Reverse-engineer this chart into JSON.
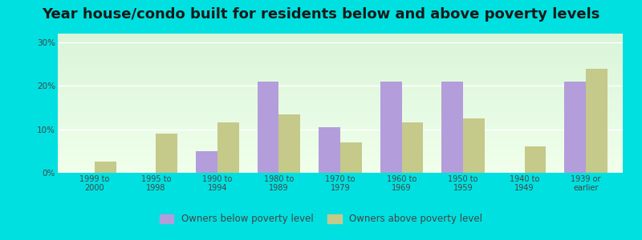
{
  "title": "Year house/condo built for residents below and above poverty levels",
  "categories": [
    "1999 to\n2000",
    "1995 to\n1998",
    "1990 to\n1994",
    "1980 to\n1989",
    "1970 to\n1979",
    "1960 to\n1969",
    "1950 to\n1959",
    "1940 to\n1949",
    "1939 or\nearlier"
  ],
  "below_poverty": [
    0.0,
    0.0,
    5.0,
    21.0,
    10.5,
    21.0,
    21.0,
    0.0,
    21.0
  ],
  "above_poverty": [
    2.5,
    9.0,
    11.5,
    13.5,
    7.0,
    11.5,
    12.5,
    6.0,
    24.0
  ],
  "below_color": "#b39ddb",
  "above_color": "#c5c98a",
  "ylim": [
    0,
    32
  ],
  "yticks": [
    0,
    10,
    20,
    30
  ],
  "ytick_labels": [
    "0%",
    "10%",
    "20%",
    "30%"
  ],
  "outer_background": "#00e0e0",
  "title_fontsize": 13,
  "legend_below_label": "Owners below poverty level",
  "legend_above_label": "Owners above poverty level",
  "bar_width": 0.35
}
